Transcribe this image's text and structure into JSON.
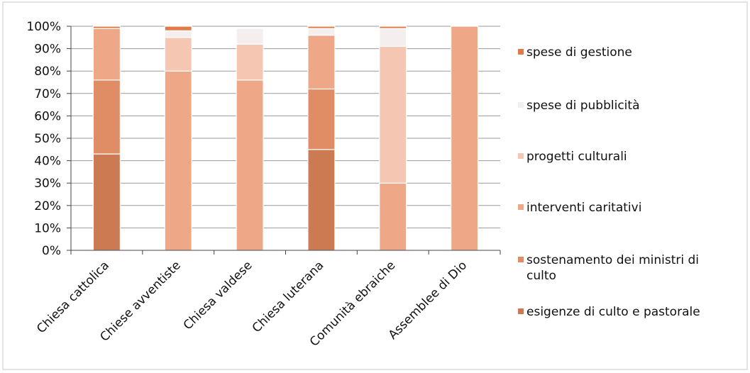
{
  "chart_data": {
    "type": "bar",
    "stacked": "percent",
    "title": "",
    "xlabel": "",
    "ylabel": "",
    "ylim": [
      0,
      100
    ],
    "yticks": [
      "0%",
      "10%",
      "20%",
      "30%",
      "40%",
      "50%",
      "60%",
      "70%",
      "80%",
      "90%",
      "100%"
    ],
    "grid": true,
    "legend_position": "right",
    "categories": [
      "Chiesa cattolica",
      "Chiese avventiste",
      "Chiesa valdese",
      "Chiesa luterana",
      "Comunità ebraiche",
      "Assemblee di Dio"
    ],
    "series": [
      {
        "name": "esigenze di culto e pastorale",
        "color": "#cc7a52",
        "values": [
          43,
          0,
          0,
          45,
          0,
          0
        ]
      },
      {
        "name": "sostenamento dei ministri di culto",
        "color": "#e08c64",
        "values": [
          33,
          0,
          0,
          27,
          0,
          0
        ]
      },
      {
        "name": "interventi caritativi",
        "color": "#eea887",
        "values": [
          23,
          80,
          76,
          24,
          30,
          100
        ]
      },
      {
        "name": "progetti culturali",
        "color": "#f5c6b2",
        "values": [
          0,
          15,
          16,
          0,
          61,
          0
        ]
      },
      {
        "name": "spese di pubblicità",
        "color": "#f4eeee",
        "values": [
          0,
          3,
          7,
          3,
          8,
          0
        ]
      },
      {
        "name": "spese di gestione",
        "color": "#e07a48",
        "values": [
          1,
          2,
          0,
          1,
          1,
          0
        ]
      }
    ],
    "legend_order": [
      "spese di gestione",
      "spese di pubblicità",
      "progetti culturali",
      "interventi caritativi",
      "sostenamento dei ministri di culto",
      "esigenze di culto e pastorale"
    ]
  }
}
